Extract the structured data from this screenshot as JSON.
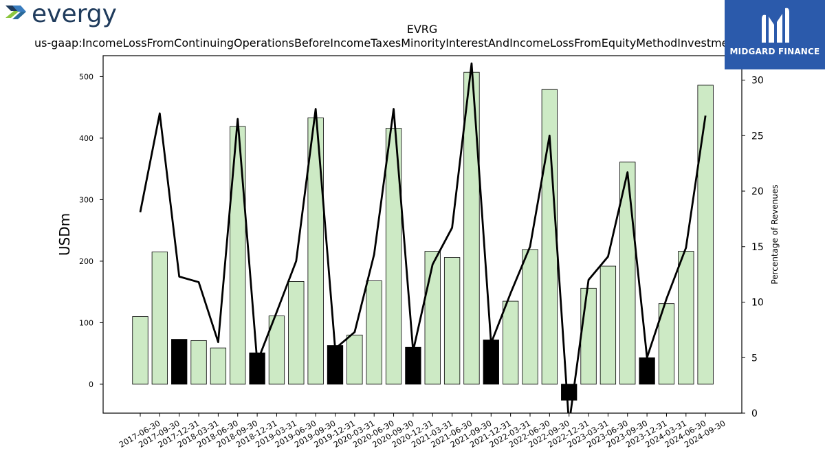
{
  "logo": {
    "text": "evergy",
    "icon": "evergy-chevron-logo"
  },
  "watermark": {
    "text": "MIDGARD FINANCE",
    "icon": "midgard-m-logo",
    "bg_color": "#2b5aab"
  },
  "chart_data": {
    "type": "bar",
    "title": "EVRG",
    "subtitle": "us-gaap:IncomeLossFromContinuingOperationsBeforeIncomeTaxesMinorityInterestAndIncomeLossFromEquityMethodInvestments",
    "ylabel": "USDm",
    "y2label": "Percentage of Revenues",
    "ylim": [
      -47,
      534
    ],
    "y2lim": [
      0,
      32.2
    ],
    "yticks": [
      0,
      100,
      200,
      300,
      400,
      500
    ],
    "y2ticks": [
      0,
      5,
      10,
      15,
      20,
      25,
      30
    ],
    "colors": {
      "q4_bar": "#000000",
      "bar": "#cdeac5",
      "line": "#000000"
    },
    "categories": [
      "2017-06-30",
      "2017-09-30",
      "2017-12-31",
      "2018-03-31",
      "2018-06-30",
      "2018-09-30",
      "2018-12-31",
      "2019-03-31",
      "2019-06-30",
      "2019-09-30",
      "2019-12-31",
      "2020-03-31",
      "2020-06-30",
      "2020-09-30",
      "2020-12-31",
      "2021-03-31",
      "2021-06-30",
      "2021-09-30",
      "2021-12-31",
      "2022-03-31",
      "2022-06-30",
      "2022-09-30",
      "2022-12-31",
      "2023-03-31",
      "2023-06-30",
      "2023-09-30",
      "2023-12-31",
      "2024-03-31",
      "2024-06-30",
      "2024-09-30"
    ],
    "series": [
      {
        "type": "bar",
        "values": [
          110,
          215,
          73,
          71,
          59,
          419,
          51,
          111,
          167,
          433,
          63,
          80,
          168,
          416,
          60,
          216,
          206,
          507,
          72,
          135,
          219,
          479,
          -26,
          156,
          192,
          361,
          43,
          131,
          216,
          486
        ]
      },
      {
        "type": "line",
        "axis": "right",
        "values": [
          18.1,
          27.0,
          12.3,
          11.8,
          6.4,
          26.5,
          4.6,
          9.1,
          13.7,
          27.4,
          5.8,
          7.3,
          14.3,
          27.4,
          5.6,
          13.4,
          16.7,
          31.5,
          6.3,
          10.8,
          15.0,
          25.0,
          -1.0,
          12.0,
          14.1,
          21.7,
          5.0,
          10.3,
          14.9,
          26.8
        ]
      }
    ]
  }
}
